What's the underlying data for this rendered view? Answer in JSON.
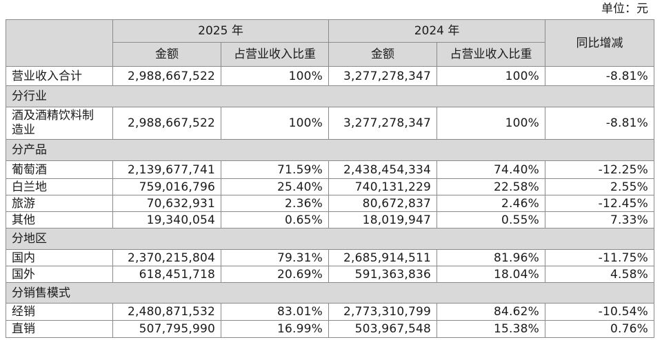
{
  "unit_label": "单位：元",
  "table": {
    "header": {
      "year_current": "2025 年",
      "year_prior": "2024 年",
      "change": "同比增减",
      "sub_columns": [
        "金额",
        "占营业收入比重",
        "金额",
        "占营业收入比重"
      ]
    },
    "rows": [
      {
        "type": "data",
        "label": "营业收入合计",
        "values": [
          "2,988,667,522",
          "100%",
          "3,277,278,347",
          "100%",
          "-8.81%"
        ]
      },
      {
        "type": "section",
        "label": "分行业"
      },
      {
        "type": "data",
        "label": "酒及酒精饮料制造业",
        "values": [
          "2,988,667,522",
          "100%",
          "3,277,278,347",
          "100%",
          "-8.81%"
        ]
      },
      {
        "type": "section",
        "label": "分产品"
      },
      {
        "type": "data",
        "label": "葡萄酒",
        "values": [
          "2,139,677,741",
          "71.59%",
          "2,438,454,334",
          "74.40%",
          "-12.25%"
        ]
      },
      {
        "type": "data",
        "label": "白兰地",
        "values": [
          "759,016,796",
          "25.40%",
          "740,131,229",
          "22.58%",
          "2.55%"
        ]
      },
      {
        "type": "data",
        "label": "旅游",
        "values": [
          "70,632,931",
          "2.36%",
          "80,672,837",
          "2.46%",
          "-12.45%"
        ]
      },
      {
        "type": "data",
        "label": "其他",
        "values": [
          "19,340,054",
          "0.65%",
          "18,019,947",
          "0.55%",
          "7.33%"
        ]
      },
      {
        "type": "section",
        "label": "分地区"
      },
      {
        "type": "data",
        "label": "国内",
        "values": [
          "2,370,215,804",
          "79.31%",
          "2,685,914,511",
          "81.96%",
          "-11.75%"
        ]
      },
      {
        "type": "data",
        "label": "国外",
        "values": [
          "618,451,718",
          "20.69%",
          "591,363,836",
          "18.04%",
          "4.58%"
        ]
      },
      {
        "type": "section",
        "label": "分销售模式"
      },
      {
        "type": "data",
        "label": "经销",
        "values": [
          "2,480,871,532",
          "83.01%",
          "2,773,310,799",
          "84.62%",
          "-10.54%"
        ]
      },
      {
        "type": "data",
        "label": "直销",
        "values": [
          "507,795,990",
          "16.99%",
          "503,967,548",
          "15.38%",
          "0.76%"
        ]
      }
    ]
  }
}
